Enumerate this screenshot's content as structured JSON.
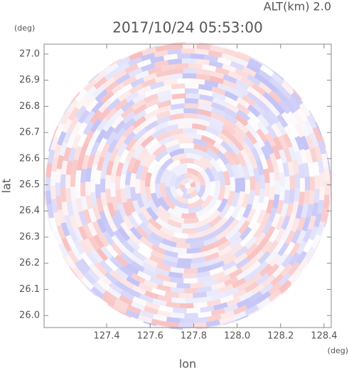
{
  "chart_data": {
    "type": "radar-image",
    "title": "2017/10/24 05:53:00",
    "subtitle": "ALT(km) 2.0",
    "x_label": "lon",
    "y_label": "lat",
    "x_unit": "(deg)",
    "y_unit": "(deg)",
    "xlim": [
      127.112,
      128.433
    ],
    "ylim": [
      25.954,
      27.038
    ],
    "xticks": [
      127.4,
      127.6,
      127.8,
      {
        "value": 128.0,
        "label": "128.0"
      },
      128.2,
      128.4
    ],
    "yticks": [
      {
        "value": 26.0,
        "label": "26.0"
      },
      26.1,
      26.2,
      26.3,
      26.4,
      26.5,
      26.6,
      26.7,
      26.8,
      26.9,
      {
        "value": 27.0,
        "label": "27.0"
      }
    ]
  }
}
